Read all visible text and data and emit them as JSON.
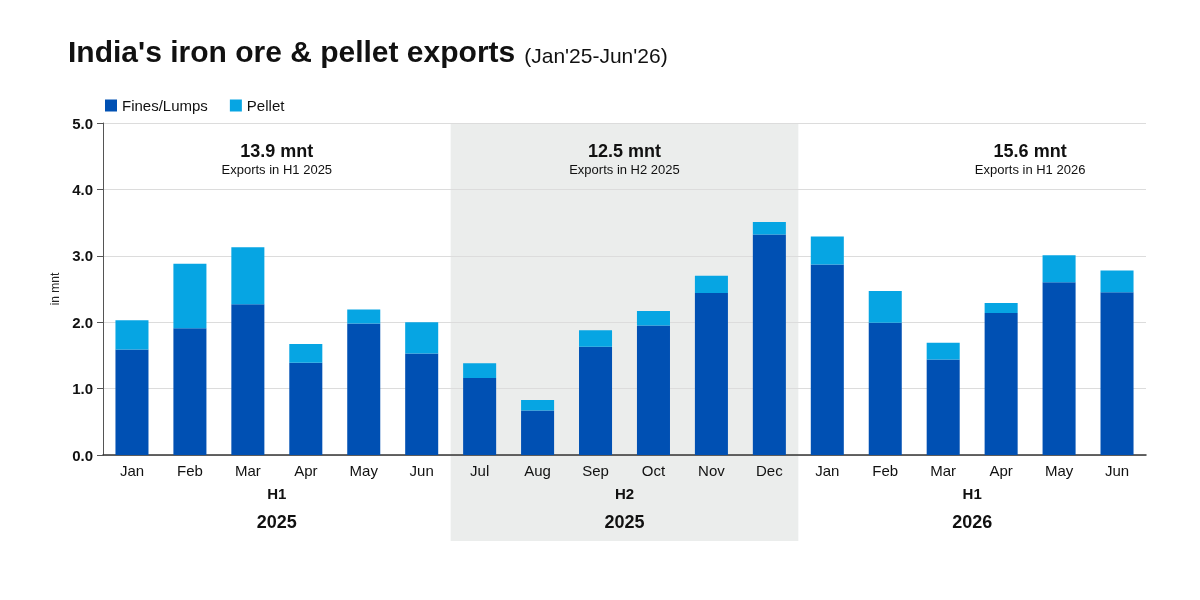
{
  "chart_data": {
    "type": "bar",
    "title": "India's iron ore & pellet exports",
    "subtitle": "(Jan'25-Jun'26)",
    "ylabel": "in mnt",
    "categories": [
      "Jan",
      "Feb",
      "Mar",
      "Apr",
      "May",
      "Jun",
      "Jul",
      "Aug",
      "Sep",
      "Oct",
      "Nov",
      "Dec",
      "Jan",
      "Feb",
      "Mar",
      "Apr",
      "May",
      "Jun"
    ],
    "series": [
      {
        "name": "Fines/Lumps",
        "color": "#0050b3",
        "values": [
          1.59,
          1.91,
          2.27,
          1.39,
          1.98,
          1.53,
          1.16,
          0.67,
          1.63,
          1.95,
          2.44,
          3.32,
          2.87,
          1.99,
          1.44,
          2.14,
          2.6,
          2.45
        ]
      },
      {
        "name": "Pellet",
        "color": "#06a5e3",
        "values": [
          0.44,
          0.97,
          0.86,
          0.28,
          0.21,
          0.47,
          0.22,
          0.16,
          0.25,
          0.22,
          0.26,
          0.19,
          0.42,
          0.48,
          0.25,
          0.15,
          0.41,
          0.33
        ]
      }
    ],
    "stacked": true,
    "ylim": [
      0,
      5
    ],
    "yticks": [
      {
        "value": 0,
        "label": "0.0"
      },
      {
        "value": 1,
        "label": "1.0"
      },
      {
        "value": 2,
        "label": "2.0"
      },
      {
        "value": 3,
        "label": "3.0"
      },
      {
        "value": 4,
        "label": "4.0"
      },
      {
        "value": 5,
        "label": "5.0"
      }
    ],
    "grid": "y",
    "legend": "top left",
    "bands": [
      {
        "axis": "x",
        "from": "Jul",
        "to": "Dec",
        "color": "#ebedec"
      }
    ],
    "annotations": [
      "13.9 mnt",
      "Exports in H1 2025",
      "12.5 mnt",
      "Exports in H2 2025",
      "15.6 mnt",
      "Exports in H1 2026",
      "H1",
      "2025",
      "H2",
      "2025",
      "H1",
      "2026"
    ]
  }
}
